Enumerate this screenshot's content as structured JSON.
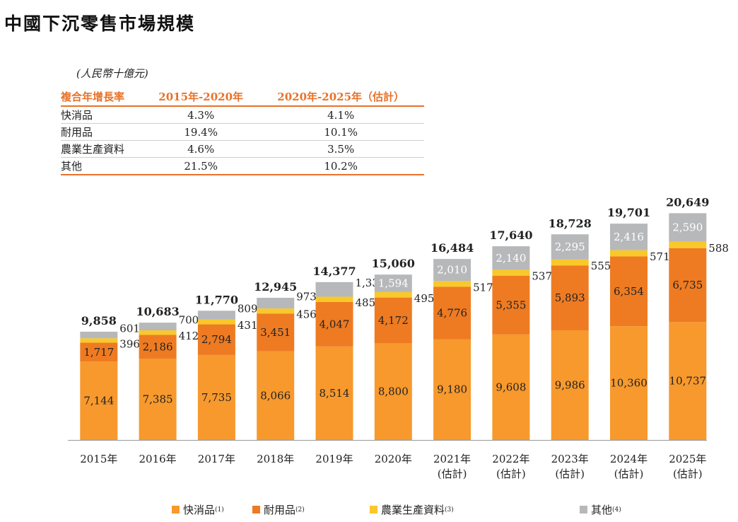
{
  "title": "中國下沉零售市場規模",
  "unit": "(人民幣十億元)",
  "cagr_table": {
    "headers": [
      "複合年增長率",
      "2015年-2020年",
      "2020年-2025年（估計）"
    ],
    "rows": [
      [
        "快消品",
        "4.3%",
        "4.1%"
      ],
      [
        "耐用品",
        "19.4%",
        "10.1%"
      ],
      [
        "農業生產資料",
        "4.6%",
        "3.5%"
      ],
      [
        "其他",
        "21.5%",
        "10.2%"
      ]
    ]
  },
  "colors": {
    "fmcg": "#f7992d",
    "durable": "#ee7b22",
    "agri": "#f9c82a",
    "other": "#b7b8ba",
    "accent": "#e8722a"
  },
  "chart_data": {
    "type": "bar",
    "stacked": true,
    "categories": [
      "2015年",
      "2016年",
      "2017年",
      "2018年",
      "2019年",
      "2020年",
      "2021年",
      "2022年",
      "2023年",
      "2024年",
      "2025年"
    ],
    "category_notes": [
      "",
      "",
      "",
      "",
      "",
      "",
      "(估計)",
      "(估計)",
      "(估計)",
      "(估計)",
      "(估計)"
    ],
    "series": [
      {
        "name": "快消品",
        "note": "(1)",
        "values": [
          7144,
          7385,
          7735,
          8066,
          8514,
          8800,
          9180,
          9608,
          9986,
          10360,
          10737
        ]
      },
      {
        "name": "耐用品",
        "note": "(2)",
        "values": [
          1717,
          2186,
          2794,
          3451,
          4047,
          4172,
          4776,
          5355,
          5893,
          6354,
          6735
        ]
      },
      {
        "name": "農業生產資料",
        "note": "(3)",
        "values": [
          396,
          412,
          431,
          456,
          485,
          495,
          517,
          537,
          555,
          571,
          588
        ]
      },
      {
        "name": "其他",
        "note": "(4)",
        "values": [
          601,
          700,
          809,
          973,
          1330,
          1594,
          2010,
          2140,
          2295,
          2416,
          2590
        ]
      }
    ],
    "totals": [
      9858,
      10683,
      11770,
      12945,
      14377,
      15060,
      16484,
      17640,
      18728,
      19701,
      20649
    ],
    "ylim": [
      0,
      21000
    ],
    "grid": false,
    "legend_position": "bottom"
  }
}
